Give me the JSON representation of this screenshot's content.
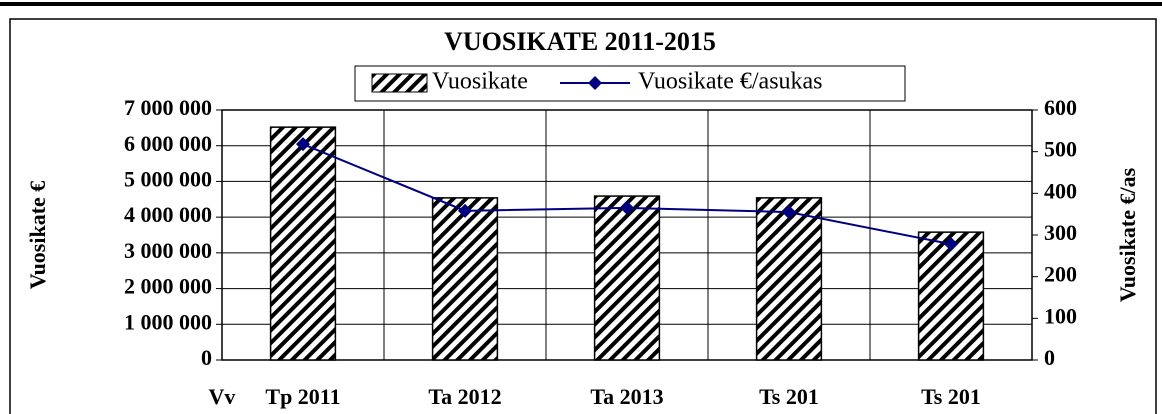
{
  "chart_data": {
    "type": "bar_line",
    "title": "VUOSIKATE 2011-2015",
    "xlabel": "Vv",
    "ylabel": "Vuosikate €",
    "y2label": "Vuosikate €/as",
    "categories": [
      "Tp 2011",
      "Ta 2012",
      "Ta 2013",
      "Ts 201",
      "Ts 201"
    ],
    "series": [
      {
        "name": "Vuosikate",
        "type": "bar",
        "color": "#000000",
        "pattern": "hatch",
        "values": [
          6520000,
          4540000,
          4590000,
          4540000,
          3580000
        ]
      },
      {
        "name": "Vuosikate €/asukas",
        "type": "line",
        "axis": "y2",
        "color": "#000080",
        "values": [
          518,
          358,
          365,
          355,
          278
        ]
      }
    ],
    "ylim": [
      0,
      7000000
    ],
    "yticks": [
      {
        "value": 0,
        "label": "0"
      },
      {
        "value": 1000000,
        "label": "1 000 000"
      },
      {
        "value": 2000000,
        "label": "2 000 000"
      },
      {
        "value": 3000000,
        "label": "3 000 000"
      },
      {
        "value": 4000000,
        "label": "4 000 000"
      },
      {
        "value": 5000000,
        "label": "5 000 000"
      },
      {
        "value": 6000000,
        "label": "6 000 000"
      },
      {
        "value": 7000000,
        "label": "7 000 000"
      }
    ],
    "y2lim": [
      0,
      600
    ],
    "y2ticks": [
      0,
      100,
      200,
      300,
      400,
      500,
      600
    ],
    "grid": true,
    "legend": "top"
  }
}
